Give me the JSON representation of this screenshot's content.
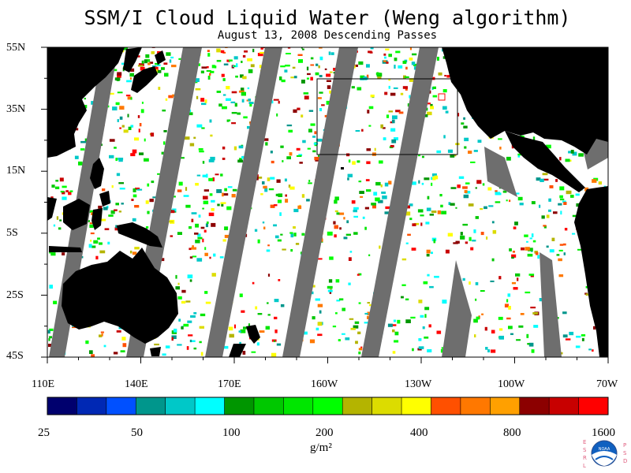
{
  "title": "SSM/I Cloud Liquid Water (Weng algorithm)",
  "subtitle": "August 13, 2008  Descending Passes",
  "lat_labels": [
    "55N",
    "35N",
    "15N",
    "5S",
    "25S",
    "45S"
  ],
  "lon_labels": [
    "110E",
    "140E",
    "170E",
    "160W",
    "130W",
    "100W",
    "70W"
  ],
  "colorbar": {
    "units": "g/m²",
    "tick_labels": [
      "25",
      "50",
      "100",
      "200",
      "400",
      "800",
      "1600"
    ],
    "colors": [
      "#00006e",
      "#0028b4",
      "#0050ff",
      "#00968c",
      "#00c8c8",
      "#00ffff",
      "#009600",
      "#00c800",
      "#00e600",
      "#00ff00",
      "#b4b400",
      "#dcdc00",
      "#ffff00",
      "#ff5000",
      "#ff7800",
      "#ffa000",
      "#8c0000",
      "#c80000",
      "#ff0000"
    ]
  },
  "map_colors": {
    "land": "#000000",
    "missing": "#6e6e6e",
    "clear": "#ffffff"
  },
  "logo": {
    "left": [
      "E",
      "S",
      "R",
      "L"
    ],
    "right": [
      "P",
      "S",
      "D"
    ],
    "center": "NOAA"
  },
  "chart_data": {
    "type": "heatmap",
    "title": "SSM/I Cloud Liquid Water (Weng algorithm)",
    "subtitle": "August 13, 2008  Descending Passes",
    "lat_range": [
      "55N",
      "45S"
    ],
    "lon_range": [
      "110E",
      "70W"
    ],
    "colorbar_range": [
      25,
      1600
    ],
    "units": "g/m²"
  }
}
